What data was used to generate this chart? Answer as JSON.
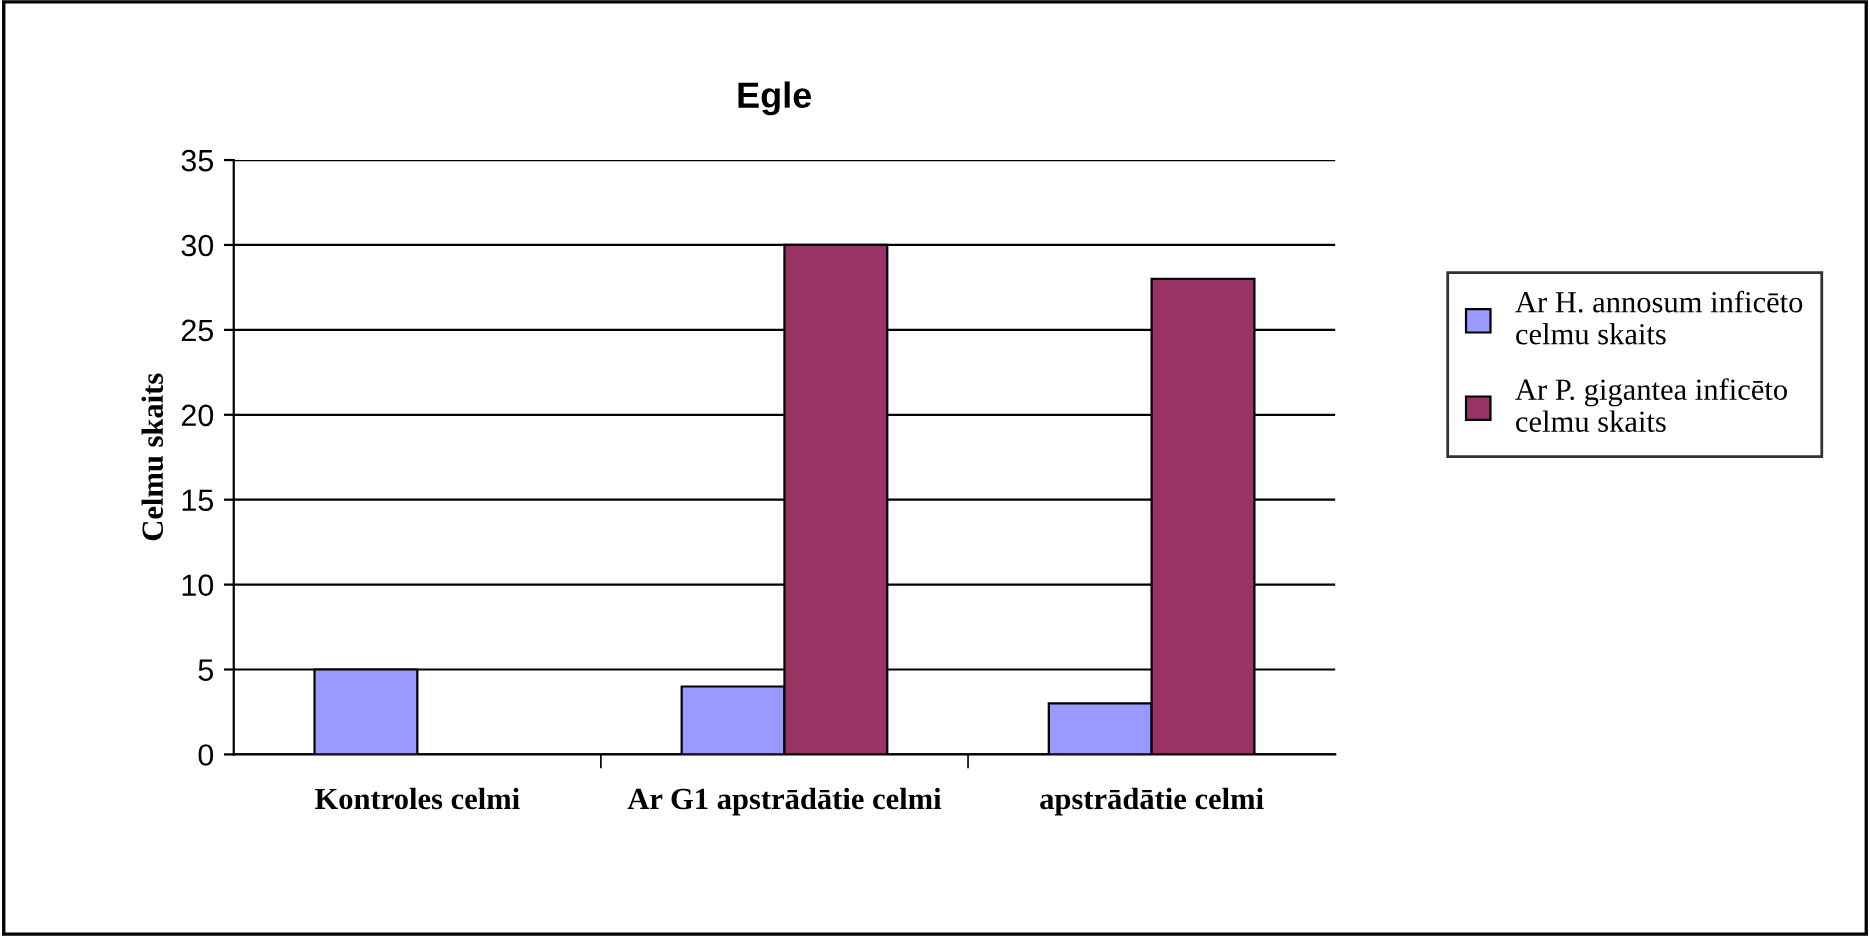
{
  "chart_data": {
    "type": "bar",
    "title": "Egle",
    "ylabel": "Celmu skaits",
    "categories": [
      "Kontroles celmi",
      "Ar G1 apstrādātie celmi",
      "apstrādātie celmi"
    ],
    "series": [
      {
        "name": "Ar H. annosum inficēto celmu skaits",
        "color": "#9999ff",
        "values": [
          5,
          4,
          3
        ]
      },
      {
        "name": "Ar P. gigantea inficēto celmu skaits",
        "color": "#993366",
        "values": [
          null,
          30,
          28
        ]
      }
    ],
    "ylim": [
      0,
      35
    ],
    "yticks": [
      0,
      5,
      10,
      15,
      20,
      25,
      30,
      35
    ],
    "grid": "y",
    "legend": "right"
  }
}
